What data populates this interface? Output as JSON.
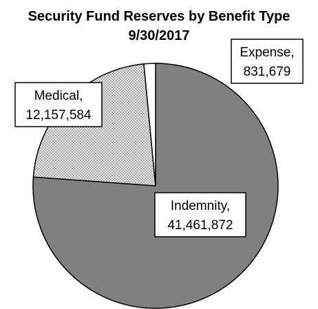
{
  "chart_data": {
    "type": "pie",
    "title": "Security Fund Reserves by Benefit Type",
    "subtitle": "9/30/2017",
    "slices": [
      {
        "label": "Indemnity",
        "value": 41461872,
        "display_value": "41,461,872",
        "color": "#808080",
        "pattern": "solid"
      },
      {
        "label": "Medical",
        "value": 12157584,
        "display_value": "12,157,584",
        "color": "#d9d9d9",
        "pattern": "dotted"
      },
      {
        "label": "Expense",
        "value": 831679,
        "display_value": "831,679",
        "color": "#ffffff",
        "pattern": "solid"
      }
    ],
    "start_angle_deg": 0,
    "direction": "clockwise",
    "legend": "none",
    "data_labels": "category name and value"
  }
}
